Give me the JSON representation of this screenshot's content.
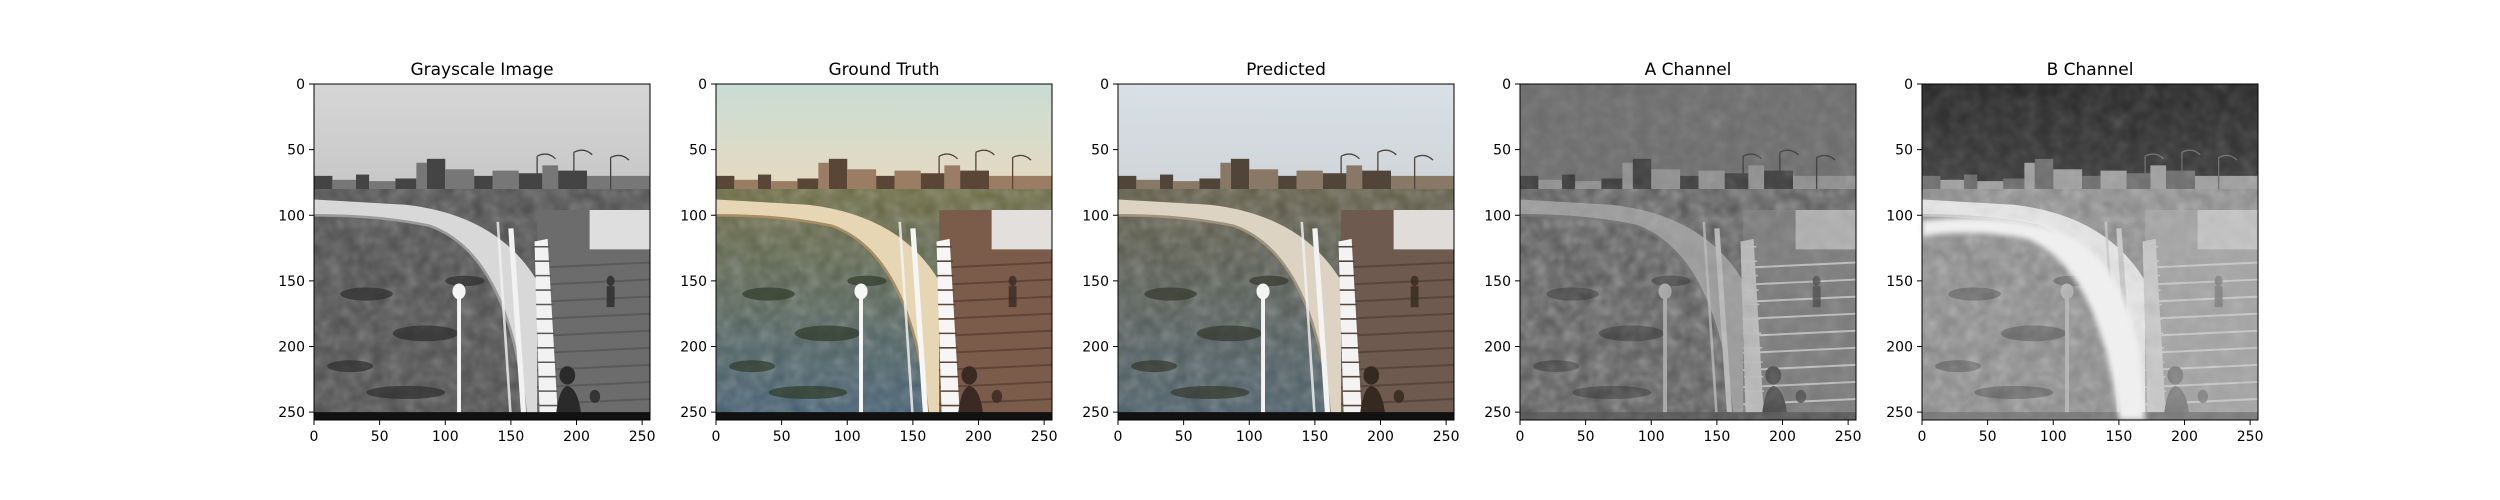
{
  "chart_data": [
    {
      "type": "image",
      "title": "Grayscale Image",
      "xlim": [
        0,
        256
      ],
      "ylim": [
        256,
        0
      ],
      "xticks": [
        0,
        50,
        100,
        150,
        200,
        250
      ],
      "yticks": [
        0,
        50,
        100,
        150,
        200,
        250
      ],
      "xlabel": "",
      "ylabel": "",
      "image_style": "grayscale"
    },
    {
      "type": "image",
      "title": "Ground Truth",
      "xlim": [
        0,
        256
      ],
      "ylim": [
        256,
        0
      ],
      "xticks": [
        0,
        50,
        100,
        150,
        200,
        250
      ],
      "yticks": [
        0,
        50,
        100,
        150,
        200,
        250
      ],
      "xlabel": "",
      "ylabel": "",
      "image_style": "color"
    },
    {
      "type": "image",
      "title": "Predicted",
      "xlim": [
        0,
        256
      ],
      "ylim": [
        256,
        0
      ],
      "xticks": [
        0,
        50,
        100,
        150,
        200,
        250
      ],
      "yticks": [
        0,
        50,
        100,
        150,
        200,
        250
      ],
      "xlabel": "",
      "ylabel": "",
      "image_style": "muted-color"
    },
    {
      "type": "image",
      "title": "A Channel",
      "xlim": [
        0,
        256
      ],
      "ylim": [
        256,
        0
      ],
      "xticks": [
        0,
        50,
        100,
        150,
        200,
        250
      ],
      "yticks": [
        0,
        50,
        100,
        150,
        200,
        250
      ],
      "xlabel": "",
      "ylabel": "",
      "image_style": "channel-a"
    },
    {
      "type": "image",
      "title": "B Channel",
      "xlim": [
        0,
        256
      ],
      "ylim": [
        256,
        0
      ],
      "xticks": [
        0,
        50,
        100,
        150,
        200,
        250
      ],
      "yticks": [
        0,
        50,
        100,
        150,
        200,
        250
      ],
      "xlabel": "",
      "ylabel": "",
      "image_style": "channel-b"
    }
  ],
  "colors": {
    "axis": "#000000",
    "background": "#ffffff"
  }
}
